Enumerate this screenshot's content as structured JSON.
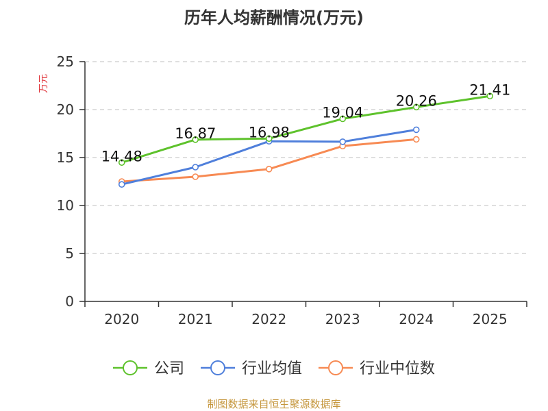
{
  "chart_data": {
    "type": "line",
    "title": "历年人均薪酬情况(万元)",
    "ylabel": "万元",
    "xlabel": "",
    "categories": [
      "2020",
      "2021",
      "2022",
      "2023",
      "2024",
      "2025"
    ],
    "ylim": [
      0,
      25
    ],
    "yticks": [
      0,
      5,
      10,
      15,
      20,
      25
    ],
    "grid": true,
    "legend_position": "bottom-center",
    "series": [
      {
        "name": "公司",
        "values": [
          14.48,
          16.87,
          16.98,
          19.04,
          20.26,
          21.41
        ],
        "color": "#5ec22c",
        "show_labels": true
      },
      {
        "name": "行业均值",
        "values": [
          12.2,
          14.0,
          16.7,
          16.65,
          17.9,
          null
        ],
        "color": "#4f7fdb",
        "show_labels": false
      },
      {
        "name": "行业中位数",
        "values": [
          12.5,
          13.0,
          13.8,
          16.2,
          16.9,
          null
        ],
        "color": "#f78a53",
        "show_labels": false
      }
    ]
  },
  "source_note": "制图数据来自恒生聚源数据库",
  "colors": {
    "title": "#333333",
    "ylabel": "#e0353b",
    "axis": "#333333",
    "grid": "#cccccc",
    "source": "#c5963c"
  }
}
